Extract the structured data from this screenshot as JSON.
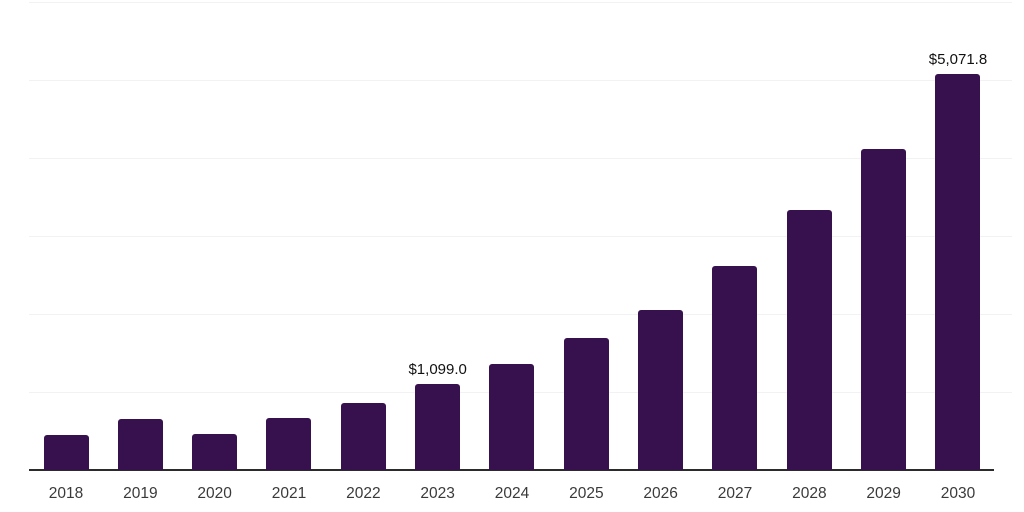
{
  "chart_data": {
    "type": "bar",
    "title": "",
    "categories": [
      "2018",
      "2019",
      "2020",
      "2021",
      "2022",
      "2023",
      "2024",
      "2025",
      "2026",
      "2027",
      "2028",
      "2029",
      "2030"
    ],
    "values": [
      450,
      655,
      460,
      665,
      860,
      1099.0,
      1360,
      1695,
      2050,
      2615,
      3335,
      4115,
      5071.8
    ],
    "data_labels": [
      "",
      "",
      "",
      "",
      "",
      "$1,099.0",
      "",
      "",
      "",
      "",
      "",
      "",
      "$5,071.8"
    ],
    "xlabel": "",
    "ylabel": "",
    "ylim": [
      0,
      6000
    ],
    "gridline_interval": 1000,
    "grid": true,
    "legend": false,
    "y_axis_tick_labels_visible": false,
    "colors": {
      "bar": "#36114E",
      "axis_line": "#2b2b2b",
      "gridline": "#f2f2f5",
      "value_label_text": "#111111",
      "tick_label_text": "#3a3a3a",
      "background": "#ffffff"
    }
  }
}
